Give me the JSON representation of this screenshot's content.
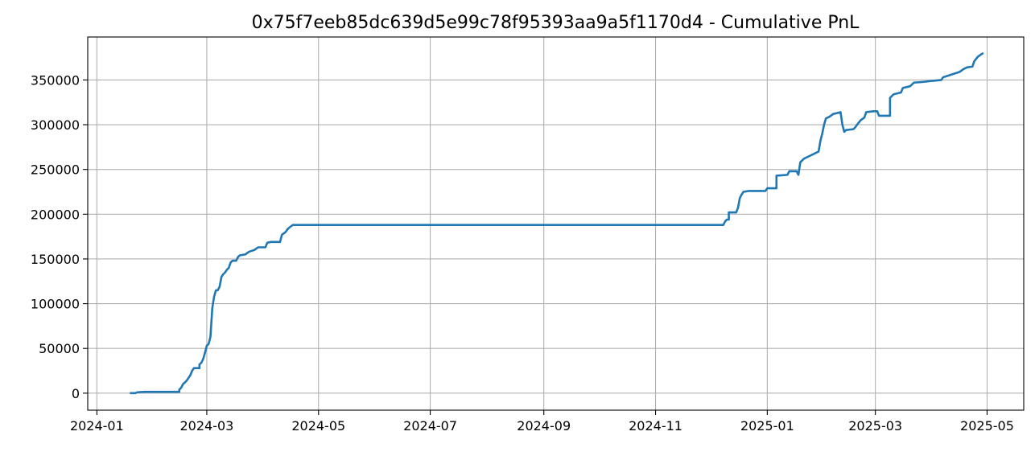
{
  "chart_data": {
    "type": "line",
    "title": "0x75f7eeb85dc639d5e99c78f95393aa9a5f1170d4 - Cumulative PnL",
    "xlabel": "",
    "ylabel": "",
    "x_axis_type": "date",
    "xlim": [
      "2023-12-27",
      "2025-05-21"
    ],
    "ylim": [
      -19000,
      398000
    ],
    "grid": true,
    "x_ticks": [
      {
        "date": "2024-01-01",
        "label": "2024-01"
      },
      {
        "date": "2024-03-01",
        "label": "2024-03"
      },
      {
        "date": "2024-05-01",
        "label": "2024-05"
      },
      {
        "date": "2024-07-01",
        "label": "2024-07"
      },
      {
        "date": "2024-09-01",
        "label": "2024-09"
      },
      {
        "date": "2024-11-01",
        "label": "2024-11"
      },
      {
        "date": "2025-01-01",
        "label": "2025-01"
      },
      {
        "date": "2025-03-01",
        "label": "2025-03"
      },
      {
        "date": "2025-05-01",
        "label": "2025-05"
      }
    ],
    "y_ticks": [
      {
        "value": 0,
        "label": "0"
      },
      {
        "value": 50000,
        "label": "50000"
      },
      {
        "value": 100000,
        "label": "100000"
      },
      {
        "value": 150000,
        "label": "150000"
      },
      {
        "value": 200000,
        "label": "200000"
      },
      {
        "value": 250000,
        "label": "250000"
      },
      {
        "value": 300000,
        "label": "300000"
      },
      {
        "value": 350000,
        "label": "350000"
      }
    ],
    "series": [
      {
        "color": "#1f77b4",
        "points": [
          [
            "2024-01-19",
            0
          ],
          [
            "2024-01-22",
            0
          ],
          [
            "2024-01-23",
            1000
          ],
          [
            "2024-01-27",
            1500
          ],
          [
            "2024-02-10",
            1500
          ],
          [
            "2024-02-15",
            1500
          ],
          [
            "2024-02-15",
            4000
          ],
          [
            "2024-02-16",
            6000
          ],
          [
            "2024-02-17",
            10000
          ],
          [
            "2024-02-18",
            12000
          ],
          [
            "2024-02-19",
            14000
          ],
          [
            "2024-02-20",
            17000
          ],
          [
            "2024-02-21",
            20000
          ],
          [
            "2024-02-22",
            25000
          ],
          [
            "2024-02-23",
            28000
          ],
          [
            "2024-02-26",
            28000
          ],
          [
            "2024-02-26",
            32000
          ],
          [
            "2024-02-27",
            34000
          ],
          [
            "2024-02-28",
            38000
          ],
          [
            "2024-02-29",
            45000
          ],
          [
            "2024-03-01",
            53000
          ],
          [
            "2024-03-02",
            55000
          ],
          [
            "2024-03-03",
            63000
          ],
          [
            "2024-03-04",
            95000
          ],
          [
            "2024-03-05",
            108000
          ],
          [
            "2024-03-06",
            115000
          ],
          [
            "2024-03-07",
            115000
          ],
          [
            "2024-03-08",
            119000
          ],
          [
            "2024-03-09",
            130000
          ],
          [
            "2024-03-10",
            133000
          ],
          [
            "2024-03-11",
            135000
          ],
          [
            "2024-03-12",
            138000
          ],
          [
            "2024-03-13",
            140000
          ],
          [
            "2024-03-14",
            146000
          ],
          [
            "2024-03-15",
            148000
          ],
          [
            "2024-03-17",
            148000
          ],
          [
            "2024-03-18",
            152000
          ],
          [
            "2024-03-19",
            154000
          ],
          [
            "2024-03-22",
            155000
          ],
          [
            "2024-03-24",
            158000
          ],
          [
            "2024-03-27",
            160000
          ],
          [
            "2024-03-29",
            163000
          ],
          [
            "2024-04-02",
            163000
          ],
          [
            "2024-04-03",
            168000
          ],
          [
            "2024-04-05",
            169000
          ],
          [
            "2024-04-10",
            169000
          ],
          [
            "2024-04-11",
            177000
          ],
          [
            "2024-04-13",
            180000
          ],
          [
            "2024-04-14",
            183000
          ],
          [
            "2024-04-15",
            185000
          ],
          [
            "2024-04-17",
            188000
          ],
          [
            "2024-05-01",
            188000
          ],
          [
            "2024-08-01",
            188000
          ],
          [
            "2024-12-08",
            188000
          ],
          [
            "2024-12-09",
            192000
          ],
          [
            "2024-12-10",
            194000
          ],
          [
            "2024-12-11",
            194000
          ],
          [
            "2024-12-11",
            202000
          ],
          [
            "2024-12-15",
            202000
          ],
          [
            "2024-12-16",
            207000
          ],
          [
            "2024-12-17",
            218000
          ],
          [
            "2024-12-18",
            222000
          ],
          [
            "2024-12-19",
            225000
          ],
          [
            "2024-12-22",
            226000
          ],
          [
            "2024-12-31",
            226000
          ],
          [
            "2025-01-01",
            229000
          ],
          [
            "2025-01-06",
            229000
          ],
          [
            "2025-01-06",
            243000
          ],
          [
            "2025-01-12",
            244000
          ],
          [
            "2025-01-13",
            248000
          ],
          [
            "2025-01-17",
            248000
          ],
          [
            "2025-01-18",
            244000
          ],
          [
            "2025-01-19",
            258000
          ],
          [
            "2025-01-21",
            262000
          ],
          [
            "2025-01-24",
            265000
          ],
          [
            "2025-01-27",
            268000
          ],
          [
            "2025-01-29",
            270000
          ],
          [
            "2025-01-30",
            282000
          ],
          [
            "2025-01-31",
            290000
          ],
          [
            "2025-02-01",
            300000
          ],
          [
            "2025-02-02",
            307000
          ],
          [
            "2025-02-04",
            309000
          ],
          [
            "2025-02-06",
            312000
          ],
          [
            "2025-02-08",
            313000
          ],
          [
            "2025-02-10",
            314000
          ],
          [
            "2025-02-11",
            300000
          ],
          [
            "2025-02-12",
            292000
          ],
          [
            "2025-02-13",
            294000
          ],
          [
            "2025-02-17",
            295000
          ],
          [
            "2025-02-18",
            297000
          ],
          [
            "2025-02-19",
            300000
          ],
          [
            "2025-02-21",
            305000
          ],
          [
            "2025-02-23",
            308000
          ],
          [
            "2025-02-24",
            314000
          ],
          [
            "2025-02-28",
            315000
          ],
          [
            "2025-03-02",
            315000
          ],
          [
            "2025-03-03",
            310000
          ],
          [
            "2025-03-09",
            310000
          ],
          [
            "2025-03-09",
            330000
          ],
          [
            "2025-03-11",
            334000
          ],
          [
            "2025-03-15",
            336000
          ],
          [
            "2025-03-16",
            341000
          ],
          [
            "2025-03-20",
            343000
          ],
          [
            "2025-03-22",
            347000
          ],
          [
            "2025-03-28",
            348000
          ],
          [
            "2025-04-01",
            349000
          ],
          [
            "2025-04-06",
            350000
          ],
          [
            "2025-04-07",
            353000
          ],
          [
            "2025-04-10",
            355000
          ],
          [
            "2025-04-13",
            357000
          ],
          [
            "2025-04-16",
            359000
          ],
          [
            "2025-04-18",
            362000
          ],
          [
            "2025-04-20",
            364000
          ],
          [
            "2025-04-23",
            365000
          ],
          [
            "2025-04-24",
            371000
          ],
          [
            "2025-04-26",
            376000
          ],
          [
            "2025-04-28",
            379000
          ],
          [
            "2025-04-29",
            380000
          ]
        ]
      }
    ]
  }
}
